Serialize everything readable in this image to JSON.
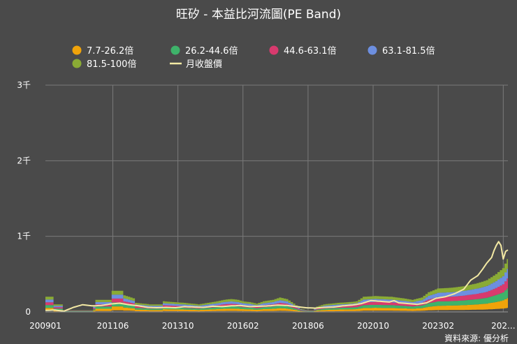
{
  "chart_data": {
    "type": "area",
    "title": "旺矽 - 本益比河流圖(PE Band)",
    "source": "資料來源: 優分析",
    "ylim": [
      0,
      3000
    ],
    "y_ticks": [
      {
        "value": 0,
        "label": "0"
      },
      {
        "value": 1000,
        "label": "1千"
      },
      {
        "value": 2000,
        "label": "2千"
      },
      {
        "value": 3000,
        "label": "3千"
      }
    ],
    "x_ticks": [
      {
        "index": 0,
        "label": "200901"
      },
      {
        "index": 29,
        "label": "201106"
      },
      {
        "index": 57,
        "label": "201310"
      },
      {
        "index": 85,
        "label": "201602"
      },
      {
        "index": 113,
        "label": "201806"
      },
      {
        "index": 141,
        "label": "202010"
      },
      {
        "index": 169,
        "label": "202302"
      },
      {
        "index": 197,
        "label": "202..."
      }
    ],
    "base_eps_keypoints": [
      [
        0,
        0.2
      ],
      [
        3,
        0.2
      ],
      [
        4,
        0.1
      ],
      [
        7,
        0.1
      ],
      [
        8,
        0.02
      ],
      [
        20,
        0.02
      ],
      [
        21,
        0.08
      ],
      [
        22,
        0.16
      ],
      [
        28,
        0.16
      ],
      [
        29,
        0.28
      ],
      [
        33,
        0.28
      ],
      [
        34,
        0.22
      ],
      [
        38,
        0.18
      ],
      [
        39,
        0.12
      ],
      [
        45,
        0.1
      ],
      [
        50,
        0.1
      ],
      [
        51,
        0.14
      ],
      [
        55,
        0.13
      ],
      [
        60,
        0.12
      ],
      [
        66,
        0.1
      ],
      [
        68,
        0.11
      ],
      [
        74,
        0.14
      ],
      [
        77,
        0.16
      ],
      [
        80,
        0.17
      ],
      [
        83,
        0.16
      ],
      [
        85,
        0.14
      ],
      [
        88,
        0.13
      ],
      [
        91,
        0.11
      ],
      [
        94,
        0.14
      ],
      [
        98,
        0.16
      ],
      [
        101,
        0.19
      ],
      [
        104,
        0.17
      ],
      [
        107,
        0.11
      ],
      [
        110,
        0.04
      ],
      [
        113,
        0.02
      ],
      [
        115,
        0.02
      ],
      [
        117,
        0.07
      ],
      [
        120,
        0.1
      ],
      [
        126,
        0.12
      ],
      [
        131,
        0.13
      ],
      [
        134,
        0.14
      ],
      [
        137,
        0.2
      ],
      [
        142,
        0.21
      ],
      [
        149,
        0.2
      ],
      [
        154,
        0.18
      ],
      [
        158,
        0.16
      ],
      [
        162,
        0.19
      ],
      [
        165,
        0.26
      ],
      [
        169,
        0.31
      ],
      [
        175,
        0.32
      ],
      [
        180,
        0.34
      ],
      [
        186,
        0.38
      ],
      [
        190,
        0.42
      ],
      [
        194,
        0.5
      ],
      [
        197,
        0.58
      ],
      [
        199,
        0.7
      ]
    ],
    "series": [
      {
        "name": "7.7-26.2倍",
        "color": "#f0a30a",
        "lo": 7.7,
        "hi": 26.2
      },
      {
        "name": "26.2-44.6倍",
        "color": "#3eb36a",
        "lo": 26.2,
        "hi": 44.6
      },
      {
        "name": "44.6-63.1倍",
        "color": "#d83a6e",
        "lo": 44.6,
        "hi": 63.1
      },
      {
        "name": "63.1-81.5倍",
        "color": "#6d8fe0",
        "lo": 63.1,
        "hi": 81.5
      },
      {
        "name": "81.5-100倍",
        "color": "#8aab35",
        "lo": 81.5,
        "hi": 100
      }
    ],
    "price_series": {
      "name": "月收盤價",
      "color": "#f3e9a4",
      "keypoints": [
        [
          0,
          20
        ],
        [
          4,
          25
        ],
        [
          8,
          10
        ],
        [
          12,
          60
        ],
        [
          16,
          95
        ],
        [
          20,
          80
        ],
        [
          24,
          85
        ],
        [
          28,
          105
        ],
        [
          32,
          115
        ],
        [
          36,
          95
        ],
        [
          40,
          80
        ],
        [
          44,
          60
        ],
        [
          48,
          55
        ],
        [
          52,
          60
        ],
        [
          56,
          55
        ],
        [
          60,
          70
        ],
        [
          64,
          65
        ],
        [
          68,
          60
        ],
        [
          72,
          75
        ],
        [
          76,
          70
        ],
        [
          80,
          80
        ],
        [
          84,
          85
        ],
        [
          88,
          70
        ],
        [
          92,
          75
        ],
        [
          96,
          80
        ],
        [
          100,
          90
        ],
        [
          104,
          85
        ],
        [
          108,
          70
        ],
        [
          112,
          55
        ],
        [
          116,
          50
        ],
        [
          120,
          60
        ],
        [
          124,
          65
        ],
        [
          128,
          80
        ],
        [
          132,
          90
        ],
        [
          136,
          110
        ],
        [
          140,
          150
        ],
        [
          144,
          140
        ],
        [
          148,
          130
        ],
        [
          150,
          150
        ],
        [
          152,
          120
        ],
        [
          156,
          110
        ],
        [
          160,
          100
        ],
        [
          164,
          120
        ],
        [
          168,
          180
        ],
        [
          172,
          200
        ],
        [
          176,
          240
        ],
        [
          180,
          300
        ],
        [
          183,
          420
        ],
        [
          186,
          480
        ],
        [
          188,
          560
        ],
        [
          190,
          650
        ],
        [
          192,
          720
        ],
        [
          193,
          810
        ],
        [
          194,
          880
        ],
        [
          195,
          930
        ],
        [
          196,
          880
        ],
        [
          197,
          700
        ],
        [
          198,
          800
        ],
        [
          199,
          820
        ]
      ]
    }
  }
}
